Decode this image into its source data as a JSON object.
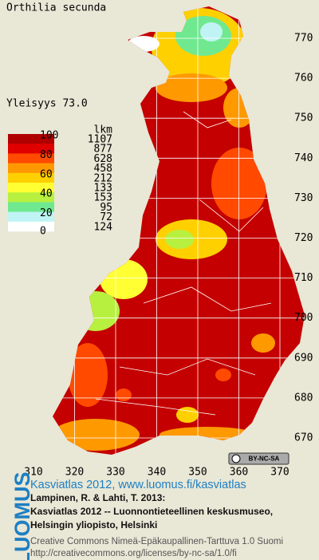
{
  "map": {
    "title": "Orthilia secunda",
    "frequency": "Yleisyys  73.0",
    "legend": {
      "scale_labels": [
        "100",
        "80",
        "60",
        "40",
        "20",
        "0"
      ],
      "count_header": "lkm",
      "classes": [
        {
          "color": "#b00000",
          "count": "1107"
        },
        {
          "color": "#e00000",
          "count": "877"
        },
        {
          "color": "#ff4a00",
          "count": "628"
        },
        {
          "color": "#ff9900",
          "count": "458"
        },
        {
          "color": "#ffd000",
          "count": "212"
        },
        {
          "color": "#ffff33",
          "count": "133"
        },
        {
          "color": "#b8f040",
          "count": "153"
        },
        {
          "color": "#70e890",
          "count": "95"
        },
        {
          "color": "#c0f4f4",
          "count": "72"
        },
        {
          "color": "#ffffff",
          "count": "124"
        }
      ]
    },
    "grid": {
      "y_labels": [
        "770",
        "760",
        "750",
        "740",
        "730",
        "720",
        "710",
        "700",
        "690",
        "680",
        "670"
      ],
      "x_labels": [
        "310",
        "320",
        "330",
        "340",
        "350",
        "360",
        "370"
      ]
    },
    "license_badge": "BY-NC-SA"
  },
  "footer": {
    "logo": "LUOMUS",
    "link": "Kasviatlas 2012, www.luomus.fi/kasviatlas",
    "citation": [
      "Lampinen, R. & Lahti, T. 2013:",
      "Kasviatlas 2012 -- Luonnontieteellinen keskusmuseo,",
      "Helsingin yliopisto, Helsinki"
    ],
    "license": [
      "Creative Commons Nimeä-Epäkaupallinen-Tarttuva 1.0 Suomi",
      "http://creativecommons.org/licenses/by-nc-sa/1.0/fi"
    ]
  }
}
